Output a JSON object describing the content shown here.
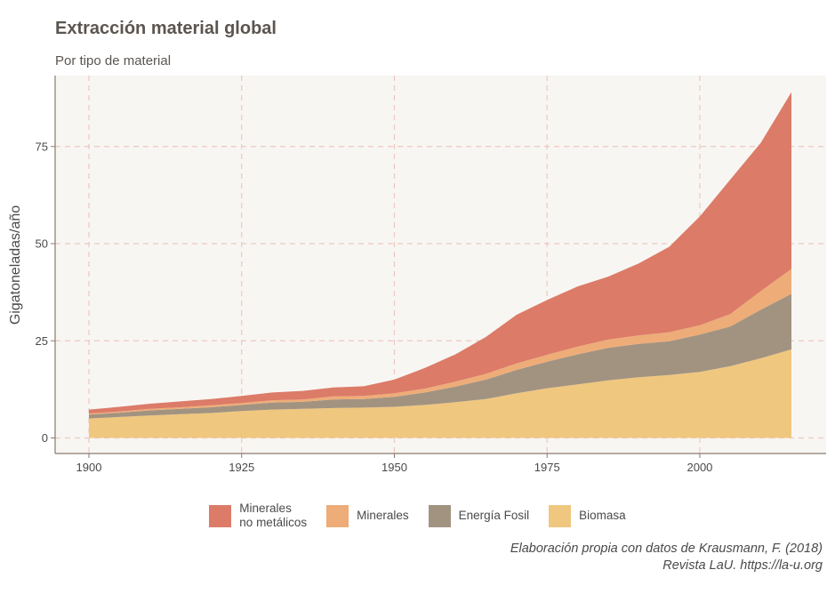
{
  "chart_data": {
    "type": "area",
    "title": "Extracción material global",
    "subtitle": "Por tipo de material",
    "ylabel": "Gigatoneladas/año",
    "xlabel": "",
    "xlim": [
      1900,
      2015
    ],
    "ylim": [
      -2,
      90
    ],
    "x_ticks": [
      1900,
      1925,
      1950,
      1975,
      2000
    ],
    "y_ticks": [
      0,
      25,
      50,
      75
    ],
    "stacked": true,
    "grid": true,
    "legend_position": "bottom",
    "x": [
      1900,
      1905,
      1910,
      1915,
      1920,
      1925,
      1930,
      1935,
      1940,
      1945,
      1950,
      1955,
      1960,
      1965,
      1970,
      1975,
      1980,
      1985,
      1990,
      1995,
      2000,
      2005,
      2010,
      2015
    ],
    "series": [
      {
        "name": "Biomasa",
        "color": "#f0c77f",
        "values": [
          5.0,
          5.4,
          5.8,
          6.1,
          6.4,
          6.9,
          7.3,
          7.5,
          7.7,
          7.8,
          8.0,
          8.5,
          9.2,
          10.0,
          11.5,
          12.8,
          13.8,
          14.8,
          15.6,
          16.2,
          17.0,
          18.5,
          20.5,
          22.8
        ]
      },
      {
        "name": "Energía Fosil",
        "color": "#a29381",
        "values": [
          1.0,
          1.1,
          1.3,
          1.4,
          1.5,
          1.6,
          1.8,
          1.8,
          2.2,
          2.2,
          2.6,
          3.2,
          4.0,
          5.0,
          6.0,
          6.8,
          7.7,
          8.4,
          8.6,
          8.7,
          9.6,
          10.2,
          12.5,
          14.3
        ]
      },
      {
        "name": "Minerales",
        "color": "#eeac78",
        "values": [
          0.3,
          0.3,
          0.4,
          0.4,
          0.5,
          0.5,
          0.6,
          0.6,
          0.8,
          0.8,
          0.9,
          1.0,
          1.3,
          1.5,
          1.7,
          1.8,
          2.0,
          2.1,
          2.2,
          2.3,
          2.4,
          3.2,
          4.8,
          6.4
        ]
      },
      {
        "name": "Minerales\nno metálicos",
        "color": "#dc7b68",
        "values": [
          1.0,
          1.2,
          1.3,
          1.5,
          1.6,
          1.8,
          2.0,
          2.2,
          2.3,
          2.5,
          3.5,
          5.3,
          7.0,
          9.5,
          12.5,
          14.1,
          15.5,
          16.2,
          18.5,
          22.0,
          28.0,
          34.6,
          38.2,
          45.5
        ]
      }
    ]
  },
  "caption": {
    "line1": "Elaboración propia con datos de Krausmann, F. (2018)",
    "line2": "Revista LaU. https://la-u.org"
  }
}
